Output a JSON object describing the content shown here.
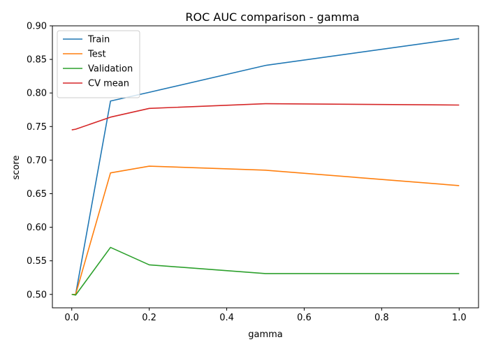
{
  "chart_data": {
    "type": "line",
    "title": "ROC AUC comparison - gamma",
    "xlabel": "gamma",
    "ylabel": "score",
    "x": [
      0.0,
      0.01,
      0.1,
      0.2,
      0.5,
      1.0
    ],
    "xlim": [
      -0.05,
      1.05
    ],
    "ylim": [
      0.48,
      0.9
    ],
    "xticks": [
      0.0,
      0.2,
      0.4,
      0.6,
      0.8,
      1.0
    ],
    "xtick_labels": [
      "0.0",
      "0.2",
      "0.4",
      "0.6",
      "0.8",
      "1.0"
    ],
    "yticks": [
      0.5,
      0.55,
      0.6,
      0.65,
      0.7,
      0.75,
      0.8,
      0.85,
      0.9
    ],
    "ytick_labels": [
      "0.50",
      "0.55",
      "0.60",
      "0.65",
      "0.70",
      "0.75",
      "0.80",
      "0.85",
      "0.90"
    ],
    "grid": false,
    "legend_position": "top-left",
    "series": [
      {
        "name": "Train",
        "color": "#1f77b4",
        "values": [
          0.5,
          0.5,
          0.788,
          0.801,
          0.841,
          0.881
        ]
      },
      {
        "name": "Test",
        "color": "#ff7f0e",
        "values": [
          0.5,
          0.5,
          0.681,
          0.691,
          0.685,
          0.662
        ]
      },
      {
        "name": "Validation",
        "color": "#2ca02c",
        "values": [
          0.5,
          0.499,
          0.57,
          0.544,
          0.531,
          0.531
        ]
      },
      {
        "name": "CV mean",
        "color": "#d62728",
        "values": [
          0.745,
          0.746,
          0.764,
          0.777,
          0.784,
          0.782
        ]
      }
    ]
  }
}
